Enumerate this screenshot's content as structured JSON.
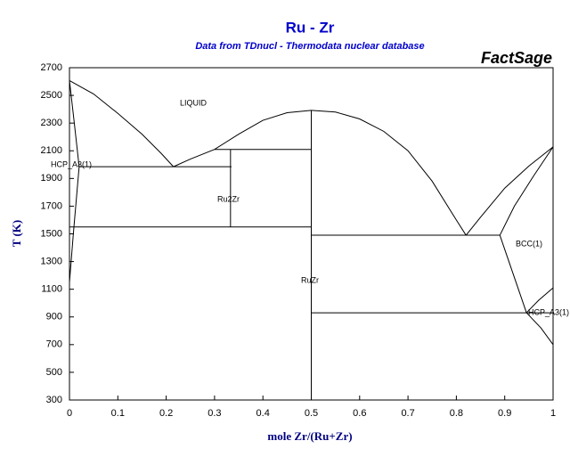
{
  "chart_data": {
    "type": "line",
    "title": "Ru - Zr",
    "subtitle": "Data from TDnucl - Thermodata nuclear database",
    "brand": "FactSage",
    "xlabel": "mole Zr/(Ru+Zr)",
    "ylabel": "T (K)",
    "xlim": [
      0,
      1
    ],
    "ylim": [
      300,
      2700
    ],
    "xticks": [
      0,
      0.1,
      0.2,
      0.3,
      0.4,
      0.5,
      0.6,
      0.7,
      0.8,
      0.9,
      1
    ],
    "yticks": [
      300,
      500,
      700,
      900,
      1100,
      1300,
      1500,
      1700,
      1900,
      2100,
      2300,
      2500,
      2700
    ],
    "annotations": [
      "LIQUID",
      "HCP_A3(1)",
      "Ru2Zr",
      "RuZr",
      "BCC(1)",
      "HCP_A3(1)"
    ],
    "series": [
      {
        "color": "#000000",
        "x": [
          0,
          0.05,
          0.1,
          0.15,
          0.19,
          0.215
        ],
        "values": [
          2607,
          2510,
          2370,
          2220,
          2080,
          1985
        ]
      },
      {
        "color": "#000000",
        "x": [
          0.215,
          0.25,
          0.3,
          0.35,
          0.4,
          0.45,
          0.5,
          0.55,
          0.6,
          0.65,
          0.7,
          0.75,
          0.8,
          0.82
        ],
        "values": [
          1985,
          2040,
          2110,
          2220,
          2320,
          2375,
          2392,
          2380,
          2330,
          2240,
          2100,
          1880,
          1600,
          1490
        ]
      },
      {
        "color": "#000000",
        "x": [
          0.82,
          0.85,
          0.9,
          0.95,
          1
        ],
        "values": [
          1490,
          1620,
          1830,
          1990,
          2128
        ]
      },
      {
        "color": "#000000",
        "x": [
          0.89,
          0.92,
          0.96,
          1
        ],
        "values": [
          1490,
          1700,
          1920,
          2128
        ]
      },
      {
        "color": "#000000",
        "x": [
          0.02,
          0.335
        ],
        "values": [
          1985,
          1985
        ]
      },
      {
        "color": "#000000",
        "x": [
          0.3,
          0.5
        ],
        "values": [
          2110,
          2110
        ]
      },
      {
        "color": "#000000",
        "x": [
          0.333,
          0.333
        ],
        "values": [
          1550,
          2110
        ]
      },
      {
        "color": "#000000",
        "x": [
          0,
          0.5
        ],
        "values": [
          1550,
          1550
        ]
      },
      {
        "color": "#000000",
        "x": [
          0.5,
          0.5
        ],
        "values": [
          300,
          2392
        ]
      },
      {
        "color": "#000000",
        "x": [
          0.5,
          0.89
        ],
        "values": [
          1490,
          1490
        ]
      },
      {
        "color": "#000000",
        "x": [
          0.5,
          1
        ],
        "values": [
          930,
          930
        ]
      },
      {
        "color": "#000000",
        "x": [
          0.89,
          0.945
        ],
        "values": [
          1490,
          930
        ]
      },
      {
        "color": "#000000",
        "x": [
          0.945,
          0.97,
          1
        ],
        "values": [
          930,
          1020,
          1110
        ]
      },
      {
        "color": "#000000",
        "x": [
          0.945,
          0.975,
          1
        ],
        "values": [
          930,
          820,
          700
        ]
      },
      {
        "color": "#000000",
        "x": [
          0,
          0.01,
          0.02
        ],
        "values": [
          2607,
          2300,
          1985
        ]
      },
      {
        "color": "#000000",
        "x": [
          0,
          0.008,
          0.02
        ],
        "values": [
          1150,
          1500,
          1985
        ]
      }
    ]
  }
}
